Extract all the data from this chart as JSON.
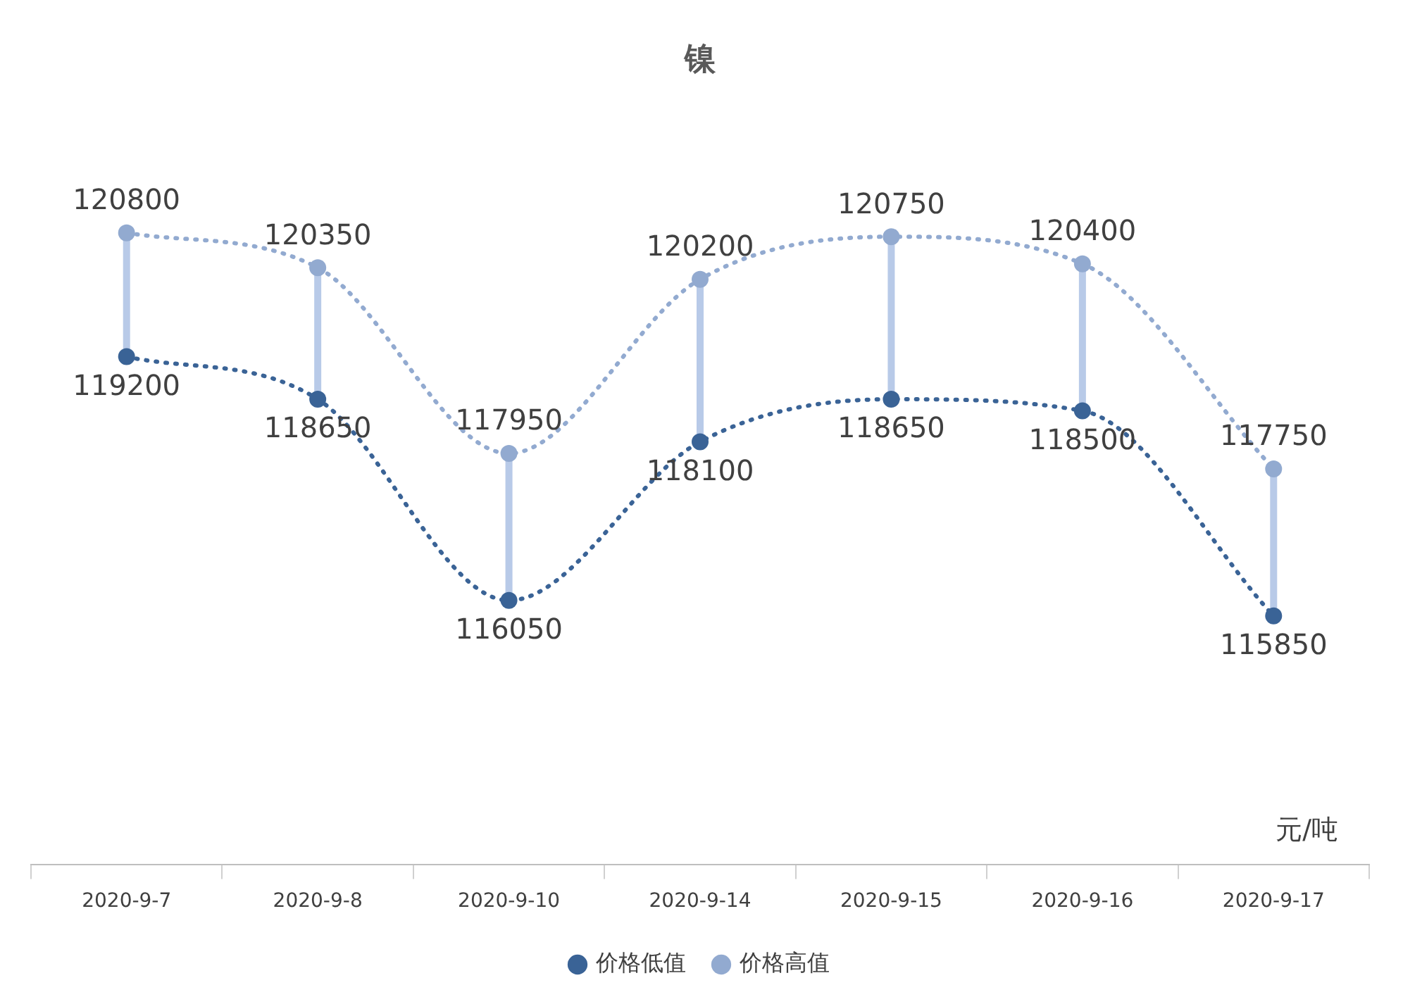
{
  "chart_data": {
    "type": "line",
    "title": "镍",
    "categories": [
      "2020-9-7",
      "2020-9-8",
      "2020-9-10",
      "2020-9-14",
      "2020-9-15",
      "2020-9-16",
      "2020-9-17"
    ],
    "series": [
      {
        "name": "价格低值",
        "color": "#3a6396",
        "values": [
          119200,
          118650,
          116050,
          118100,
          118650,
          118500,
          115850
        ]
      },
      {
        "name": "价格高值",
        "color": "#92aad0",
        "values": [
          120800,
          120350,
          117950,
          120200,
          120750,
          120400,
          117750
        ]
      }
    ],
    "data_labels": true,
    "legend": "bottom",
    "marker": "circle",
    "line_style": "dotted",
    "annotations": [
      "元/吨"
    ]
  }
}
